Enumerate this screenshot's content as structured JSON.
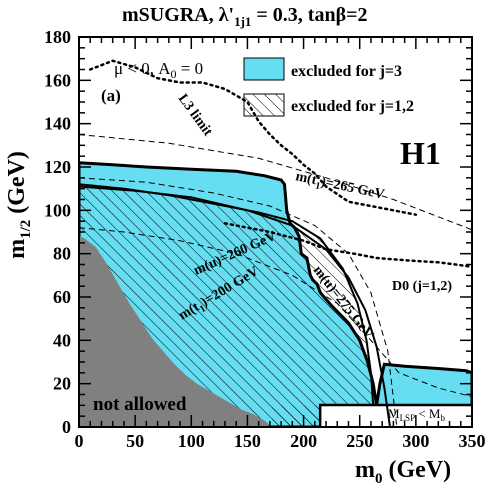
{
  "title": {
    "prefix": "mSUGRA, λ'",
    "sub": "1j1",
    "suffix": " = 0.3, tanβ=2"
  },
  "chart_data": {
    "type": "area",
    "xlabel": "m",
    "xlabel_sub": "0",
    "xlabel_unit": " (GeV)",
    "ylabel": "m",
    "ylabel_sub": "1/2",
    "ylabel_unit": " (GeV)",
    "xlim": [
      0,
      350
    ],
    "ylim": [
      0,
      180
    ],
    "xticks": [
      "0",
      "50",
      "100",
      "150",
      "200",
      "250",
      "300",
      "350"
    ],
    "yticks": [
      "0",
      "20",
      "40",
      "60",
      "80",
      "100",
      "120",
      "140",
      "160",
      "180"
    ],
    "colors": {
      "excluded_j3": "#66ddf0",
      "not_allowed": "#808080"
    },
    "legend": [
      {
        "label": "excluded for j=3",
        "style": "cyan-fill"
      },
      {
        "label": "excluded for j=1,2",
        "style": "hatched"
      }
    ],
    "annotations": {
      "condition": "μ < 0, A",
      "condition_sub": "0",
      "condition_suffix": " = 0",
      "panel": "(a)",
      "experiment": "H1",
      "l3": "L3 limit",
      "d0": "D0 (j=1,2)",
      "not_allowed": "not allowed",
      "stop": "m(t",
      "stop_sub": "1",
      "stop_suffix": ")=265 GeV",
      "mu260": "m(u)=260 GeV",
      "mu275": "m(u)=275 GeV",
      "mt200": "m(t",
      "mt200_sub": "1",
      "mt200_suffix": ")=200 GeV",
      "mlsp": "M",
      "mlsp_sub": "LSP",
      "mlsp_mid": " < M",
      "mlsp_sub2": "b"
    },
    "regions": {
      "not_allowed": [
        [
          0,
          88
        ],
        [
          5,
          87
        ],
        [
          15,
          83
        ],
        [
          25,
          75
        ],
        [
          35,
          66
        ],
        [
          45,
          57
        ],
        [
          55,
          49
        ],
        [
          65,
          41
        ],
        [
          75,
          35
        ],
        [
          85,
          29
        ],
        [
          95,
          24
        ],
        [
          105,
          20
        ],
        [
          115,
          17
        ],
        [
          125,
          14
        ],
        [
          135,
          11
        ],
        [
          145,
          8
        ],
        [
          155,
          6
        ],
        [
          165,
          3
        ],
        [
          172,
          0
        ],
        [
          0,
          0
        ]
      ],
      "excluded_j3": [
        [
          0,
          122
        ],
        [
          30,
          121
        ],
        [
          60,
          120
        ],
        [
          100,
          119
        ],
        [
          140,
          118
        ],
        [
          165,
          116
        ],
        [
          180,
          114
        ],
        [
          183,
          112
        ],
        [
          185,
          100
        ],
        [
          188,
          94
        ],
        [
          192,
          92
        ],
        [
          196,
          88
        ],
        [
          198,
          80
        ],
        [
          203,
          78
        ],
        [
          206,
          70
        ],
        [
          208,
          68
        ],
        [
          212,
          66
        ],
        [
          215,
          62
        ],
        [
          225,
          56
        ],
        [
          240,
          48
        ],
        [
          250,
          40
        ],
        [
          257,
          30
        ],
        [
          262,
          20
        ],
        [
          265,
          10
        ],
        [
          268,
          20
        ],
        [
          272,
          29
        ],
        [
          290,
          28
        ],
        [
          320,
          27
        ],
        [
          345,
          26
        ],
        [
          350,
          25
        ],
        [
          350,
          10
        ],
        [
          215,
          10
        ],
        [
          215,
          0
        ],
        [
          0,
          0
        ]
      ],
      "excluded_j12": [
        [
          0,
          112
        ],
        [
          40,
          110
        ],
        [
          80,
          107
        ],
        [
          120,
          103
        ],
        [
          160,
          99
        ],
        [
          190,
          95
        ],
        [
          215,
          87
        ],
        [
          235,
          73
        ],
        [
          248,
          57
        ],
        [
          256,
          40
        ],
        [
          260,
          25
        ],
        [
          262,
          10
        ],
        [
          215,
          10
        ],
        [
          215,
          0
        ],
        [
          0,
          0
        ]
      ]
    },
    "series": [
      {
        "name": "L3 limit",
        "style": "dotted",
        "x": [
          10,
          30,
          50,
          70,
          90,
          110,
          130,
          150,
          160,
          170,
          180,
          190,
          200,
          210,
          220,
          240,
          270,
          300
        ],
        "y": [
          165,
          169,
          166,
          161,
          159,
          159,
          156,
          150,
          141,
          135,
          130,
          126,
          121,
          117,
          111,
          104,
          101,
          98
        ]
      },
      {
        "name": "D0 (j=1,2)",
        "style": "dotted",
        "x": [
          130,
          170,
          200,
          220,
          245,
          265,
          290,
          320,
          350
        ],
        "y": [
          94,
          90,
          86,
          82,
          80,
          78,
          77,
          76,
          74
        ]
      },
      {
        "name": "m(u)=275 GeV",
        "style": "solid",
        "x": [
          0,
          50,
          100,
          150,
          190,
          220,
          240,
          255,
          265,
          272,
          277
        ],
        "y": [
          111,
          109,
          106,
          100,
          93,
          82,
          69,
          54,
          37,
          18,
          0
        ]
      }
    ]
  }
}
